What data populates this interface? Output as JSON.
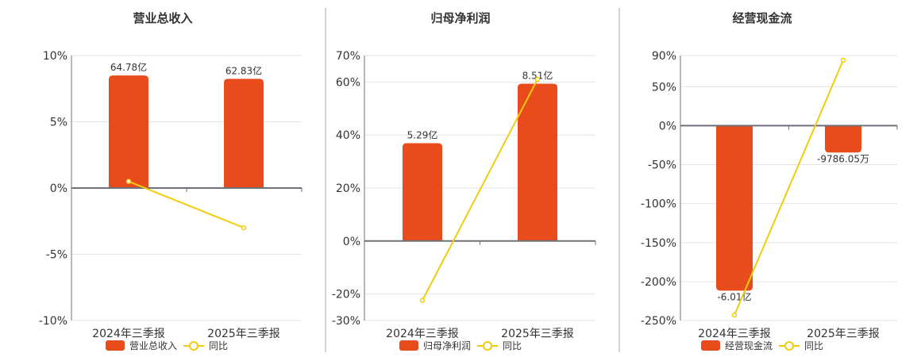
{
  "colors": {
    "bar": "#e84c1c",
    "line": "#f2cc0c",
    "grid": "#e0e4ee",
    "axis": "#6e7079",
    "divider": "#aaaaaa"
  },
  "chart_data": [
    {
      "type": "bar+line",
      "title": "营业总收入",
      "categories": [
        "2024年三季报",
        "2025年三季报"
      ],
      "bar_series": {
        "name": "营业总收入",
        "values": [
          64.78,
          62.83
        ],
        "unit": "亿",
        "labels": [
          "64.78亿",
          "62.83亿"
        ]
      },
      "line_series": {
        "name": "同比",
        "values": [
          0.5,
          -3.0
        ],
        "unit": "%"
      },
      "yticks": [
        "10%",
        "5%",
        "0%",
        "-5%",
        "-10%"
      ],
      "ytick_values": [
        10,
        5,
        0,
        -5,
        -10
      ],
      "ylim": [
        -10,
        10
      ],
      "grid": true,
      "legend_placement": "bottom"
    },
    {
      "type": "bar+line",
      "title": "归母净利润",
      "categories": [
        "2024年三季报",
        "2025年三季报"
      ],
      "bar_series": {
        "name": "归母净利润",
        "values": [
          5.29,
          8.51
        ],
        "unit": "亿",
        "labels": [
          "5.29亿",
          "8.51亿"
        ]
      },
      "line_series": {
        "name": "同比",
        "values": [
          -22.4,
          61.0
        ],
        "unit": "%"
      },
      "yticks": [
        "70%",
        "60%",
        "40%",
        "20%",
        "0%",
        "-20%",
        "-30%"
      ],
      "ytick_values": [
        70,
        60,
        40,
        20,
        0,
        -20,
        -30
      ],
      "ylim": [
        -30,
        70
      ],
      "grid": true,
      "legend_placement": "bottom"
    },
    {
      "type": "bar+line",
      "title": "经营现金流",
      "categories": [
        "2024年三季报",
        "2025年三季报"
      ],
      "bar_series": {
        "name": "经营现金流",
        "values": [
          -6.01,
          -0.978605
        ],
        "unit": "亿",
        "labels": [
          "-6.01亿",
          "-9786.05万"
        ]
      },
      "line_series": {
        "name": "同比",
        "values": [
          -243,
          84
        ],
        "unit": "%"
      },
      "yticks": [
        "90%",
        "50%",
        "0%",
        "-50%",
        "-100%",
        "-150%",
        "-200%",
        "-250%"
      ],
      "ytick_values": [
        90,
        50,
        0,
        -50,
        -100,
        -150,
        -200,
        -250
      ],
      "ylim": [
        -250,
        90
      ],
      "grid": true,
      "legend_placement": "bottom"
    }
  ]
}
